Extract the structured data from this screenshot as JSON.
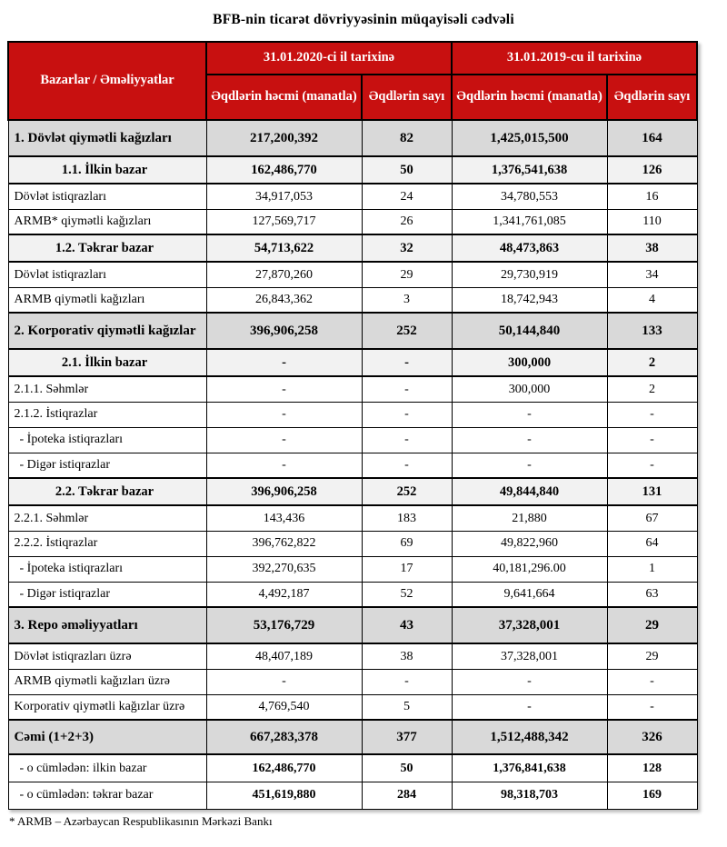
{
  "title": "BFB-nin ticarət dövriyyəsinin müqayisəli cədvəli",
  "footnote": "* ARMB – Azərbaycan Respublikasının Mərkəzi Bankı",
  "colors": {
    "header_bg": "#C81010",
    "header_text": "#FFFFFF",
    "section_bg": "#D9D9D9",
    "subsection_bg": "#F2F2F2",
    "row_bg": "#FFFFFF",
    "border": "#000000"
  },
  "table": {
    "header": {
      "col_markets": "Bazarlar / Əməliyyatlar",
      "group_2020": "31.01.2020-ci il tarixinə",
      "group_2019": "31.01.2019-cu il tarixinə",
      "col_volume_2020": "Əqdlərin həcmi (manatla)",
      "col_count_2020": "Əqdlərin sayı",
      "col_volume_2019": "Əqdlərin həcmi (manatla)",
      "col_count_2019": "Əqdlərin sayı"
    },
    "rows": [
      {
        "label": "1. Dövlət qiymətli kağızları",
        "vol_2020": "217,200,392",
        "cnt_2020": "82",
        "vol_2019": "1,425,015,500",
        "cnt_2019": "164",
        "style": "section"
      },
      {
        "label": "1.1. İlkin bazar",
        "vol_2020": "162,486,770",
        "cnt_2020": "50",
        "vol_2019": "1,376,541,638",
        "cnt_2019": "126",
        "style": "subsection"
      },
      {
        "label": "Dövlət istiqrazları",
        "vol_2020": "34,917,053",
        "cnt_2020": "24",
        "vol_2019": "34,780,553",
        "cnt_2019": "16",
        "style": "detail"
      },
      {
        "label": "ARMB* qiymətli kağızları",
        "vol_2020": "127,569,717",
        "cnt_2020": "26",
        "vol_2019": "1,341,761,085",
        "cnt_2019": "110",
        "style": "detail"
      },
      {
        "label": "1.2. Təkrar bazar",
        "vol_2020": "54,713,622",
        "cnt_2020": "32",
        "vol_2019": "48,473,863",
        "cnt_2019": "38",
        "style": "subsection"
      },
      {
        "label": "Dövlət istiqrazları",
        "vol_2020": "27,870,260",
        "cnt_2020": "29",
        "vol_2019": "29,730,919",
        "cnt_2019": "34",
        "style": "detail"
      },
      {
        "label": "ARMB qiymətli kağızları",
        "vol_2020": "26,843,362",
        "cnt_2020": "3",
        "vol_2019": "18,742,943",
        "cnt_2019": "4",
        "style": "detail"
      },
      {
        "label": "2. Korporativ qiymətli kağızlar",
        "vol_2020": "396,906,258",
        "cnt_2020": "252",
        "vol_2019": "50,144,840",
        "cnt_2019": "133",
        "style": "section"
      },
      {
        "label": "2.1. İlkin bazar",
        "vol_2020": "-",
        "cnt_2020": "-",
        "vol_2019": "300,000",
        "cnt_2019": "2",
        "style": "subsection"
      },
      {
        "label": "2.1.1. Səhmlər",
        "vol_2020": "-",
        "cnt_2020": "-",
        "vol_2019": "300,000",
        "cnt_2019": "2",
        "style": "detail"
      },
      {
        "label": "2.1.2. İstiqrazlar",
        "vol_2020": "-",
        "cnt_2020": "-",
        "vol_2019": "-",
        "cnt_2019": "-",
        "style": "detail"
      },
      {
        "label": "- İpoteka istiqrazları",
        "vol_2020": "-",
        "cnt_2020": "-",
        "vol_2019": "-",
        "cnt_2019": "-",
        "style": "detail-indent"
      },
      {
        "label": "- Digər istiqrazlar",
        "vol_2020": "-",
        "cnt_2020": "-",
        "vol_2019": "-",
        "cnt_2019": "-",
        "style": "detail-indent"
      },
      {
        "label": "2.2. Təkrar bazar",
        "vol_2020": "396,906,258",
        "cnt_2020": "252",
        "vol_2019": "49,844,840",
        "cnt_2019": "131",
        "style": "subsection"
      },
      {
        "label": "2.2.1. Səhmlər",
        "vol_2020": "143,436",
        "cnt_2020": "183",
        "vol_2019": "21,880",
        "cnt_2019": "67",
        "style": "detail"
      },
      {
        "label": "2.2.2. İstiqrazlar",
        "vol_2020": "396,762,822",
        "cnt_2020": "69",
        "vol_2019": "49,822,960",
        "cnt_2019": "64",
        "style": "detail"
      },
      {
        "label": "- İpoteka istiqrazları",
        "vol_2020": "392,270,635",
        "cnt_2020": "17",
        "vol_2019": "40,181,296.00",
        "cnt_2019": "1",
        "style": "detail-indent"
      },
      {
        "label": "- Digər istiqrazlar",
        "vol_2020": "4,492,187",
        "cnt_2020": "52",
        "vol_2019": "9,641,664",
        "cnt_2019": "63",
        "style": "detail-indent"
      },
      {
        "label": "3. Repo əməliyyatları",
        "vol_2020": "53,176,729",
        "cnt_2020": "43",
        "vol_2019": "37,328,001",
        "cnt_2019": "29",
        "style": "section"
      },
      {
        "label": "Dövlət istiqrazları üzrə",
        "vol_2020": "48,407,189",
        "cnt_2020": "38",
        "vol_2019": "37,328,001",
        "cnt_2019": "29",
        "style": "detail"
      },
      {
        "label": "ARMB qiymətli kağızları üzrə",
        "vol_2020": "-",
        "cnt_2020": "-",
        "vol_2019": "-",
        "cnt_2019": "-",
        "style": "detail"
      },
      {
        "label": "Korporativ qiymətli kağızlar üzrə",
        "vol_2020": "4,769,540",
        "cnt_2020": "5",
        "vol_2019": "-",
        "cnt_2019": "-",
        "style": "detail"
      },
      {
        "label": "Cəmi (1+2+3)",
        "vol_2020": "667,283,378",
        "cnt_2020": "377",
        "vol_2019": "1,512,488,342",
        "cnt_2019": "326",
        "style": "total"
      },
      {
        "label": "- o cümlədən: ilkin bazar",
        "vol_2020": "162,486,770",
        "cnt_2020": "50",
        "vol_2019": "1,376,841,638",
        "cnt_2019": "128",
        "style": "total-detail"
      },
      {
        "label": "- o cümlədən: təkrar bazar",
        "vol_2020": "451,619,880",
        "cnt_2020": "284",
        "vol_2019": "98,318,703",
        "cnt_2019": "169",
        "style": "total-detail"
      }
    ]
  }
}
